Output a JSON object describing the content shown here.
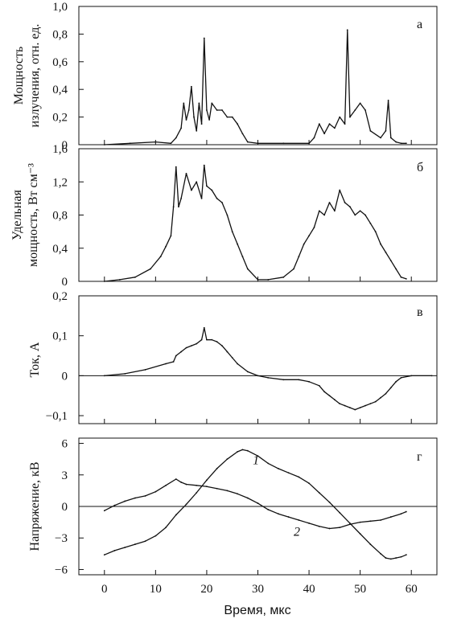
{
  "chart_data": [
    {
      "panel": "а",
      "type": "line",
      "ylabel": [
        "Мощность",
        "излучения, отн. ед."
      ],
      "ylim": [
        0,
        1.0
      ],
      "yticks": [
        0,
        0.2,
        0.4,
        0.6,
        0.8,
        1.0
      ],
      "ytick_labels": [
        "0",
        "0,2",
        "0,4",
        "0,6",
        "0,8",
        "1,0"
      ],
      "xlim": [
        -5,
        65
      ],
      "series": [
        {
          "x": [
            0,
            5,
            10,
            13,
            14,
            15,
            15.5,
            16,
            16.5,
            17,
            17.5,
            18,
            18.5,
            19,
            19.5,
            20,
            20.5,
            21,
            22,
            23,
            24,
            25,
            26,
            27,
            28,
            30,
            35,
            40,
            41,
            42,
            43,
            44,
            45,
            46,
            47,
            47.5,
            48,
            49,
            50,
            51,
            52,
            54,
            55,
            55.5,
            56,
            57,
            58,
            59
          ],
          "y": [
            0,
            0.01,
            0.02,
            0.01,
            0.05,
            0.12,
            0.3,
            0.18,
            0.25,
            0.42,
            0.2,
            0.1,
            0.3,
            0.15,
            0.77,
            0.25,
            0.18,
            0.3,
            0.25,
            0.25,
            0.2,
            0.2,
            0.15,
            0.08,
            0.02,
            0.01,
            0.01,
            0.01,
            0.05,
            0.15,
            0.08,
            0.15,
            0.12,
            0.2,
            0.15,
            0.83,
            0.2,
            0.25,
            0.3,
            0.25,
            0.1,
            0.05,
            0.1,
            0.32,
            0.05,
            0.02,
            0.01,
            0.01
          ]
        }
      ]
    },
    {
      "panel": "б",
      "type": "line",
      "ylabel": [
        "Удельная",
        "мощность, Вт см⁻³"
      ],
      "ylim": [
        0,
        1.6
      ],
      "yticks": [
        0,
        0.4,
        0.8,
        1.2,
        1.6
      ],
      "ytick_labels": [
        "0",
        "0,4",
        "0,8",
        "1,2",
        "1,6"
      ],
      "xlim": [
        -5,
        65
      ],
      "series": [
        {
          "x": [
            0,
            3,
            6,
            9,
            11,
            12,
            13,
            13.5,
            14,
            14.5,
            15,
            16,
            17,
            18,
            19,
            19.5,
            20,
            21,
            22,
            23,
            24,
            25,
            26,
            27,
            28,
            30,
            32,
            35,
            37,
            38,
            39,
            40,
            41,
            42,
            43,
            44,
            45,
            46,
            47,
            48,
            49,
            50,
            51,
            52,
            53,
            54,
            55,
            56,
            57,
            58,
            59
          ],
          "y": [
            0,
            0.02,
            0.05,
            0.15,
            0.3,
            0.42,
            0.55,
            0.9,
            1.38,
            0.9,
            1.0,
            1.3,
            1.1,
            1.2,
            1.0,
            1.4,
            1.15,
            1.1,
            1.0,
            0.95,
            0.8,
            0.6,
            0.45,
            0.3,
            0.15,
            0.02,
            0.02,
            0.05,
            0.15,
            0.3,
            0.45,
            0.55,
            0.65,
            0.85,
            0.8,
            0.95,
            0.85,
            1.1,
            0.95,
            0.9,
            0.8,
            0.85,
            0.8,
            0.7,
            0.6,
            0.45,
            0.35,
            0.25,
            0.15,
            0.05,
            0.03
          ]
        }
      ]
    },
    {
      "panel": "в",
      "type": "line",
      "ylabel": [
        "Ток, А"
      ],
      "ylim": [
        -0.12,
        0.2
      ],
      "yticks": [
        -0.1,
        0,
        0.1,
        0.2
      ],
      "ytick_labels": [
        "−0,1",
        "0",
        "0,1",
        "0,2"
      ],
      "xlim": [
        -5,
        65
      ],
      "series": [
        {
          "x": [
            0,
            4,
            8,
            12,
            13.5,
            14,
            15,
            16,
            17,
            18,
            19,
            19.5,
            20,
            21,
            22,
            23,
            24,
            25,
            26,
            28,
            30,
            32,
            35,
            38,
            40,
            42,
            43,
            44,
            45,
            46,
            47,
            48,
            49,
            50,
            51,
            52,
            53,
            54,
            55,
            56,
            57,
            58,
            60,
            64
          ],
          "y": [
            0,
            0.005,
            0.015,
            0.03,
            0.035,
            0.05,
            0.06,
            0.07,
            0.075,
            0.08,
            0.09,
            0.12,
            0.09,
            0.09,
            0.085,
            0.075,
            0.06,
            0.045,
            0.03,
            0.01,
            0.0,
            -0.005,
            -0.01,
            -0.01,
            -0.015,
            -0.025,
            -0.04,
            -0.05,
            -0.06,
            -0.07,
            -0.075,
            -0.08,
            -0.085,
            -0.08,
            -0.075,
            -0.07,
            -0.065,
            -0.055,
            -0.045,
            -0.03,
            -0.015,
            -0.005,
            0,
            0
          ]
        }
      ]
    },
    {
      "panel": "г",
      "type": "line",
      "ylabel": [
        "Напряжение, кВ"
      ],
      "ylim": [
        -6.5,
        6.5
      ],
      "yticks": [
        -6,
        -3,
        0,
        3,
        6
      ],
      "ytick_labels": [
        "−6",
        "−3",
        "0",
        "3",
        "6"
      ],
      "xlim": [
        -5,
        65
      ],
      "xticks": [
        0,
        10,
        20,
        30,
        40,
        50,
        60
      ],
      "xtick_labels": [
        "0",
        "10",
        "20",
        "30",
        "40",
        "50",
        "60"
      ],
      "xlabel": "Время, мкс",
      "series": [
        {
          "name": "1",
          "x": [
            0,
            2,
            4,
            6,
            8,
            10,
            12,
            14,
            16,
            18,
            20,
            22,
            24,
            26,
            27,
            28,
            30,
            32,
            34,
            36,
            38,
            40,
            42,
            44,
            46,
            48,
            50,
            52,
            54,
            55,
            56,
            57,
            58,
            59
          ],
          "y": [
            -4.6,
            -4.2,
            -3.9,
            -3.6,
            -3.3,
            -2.8,
            -2.0,
            -0.8,
            0.2,
            1.3,
            2.5,
            3.6,
            4.5,
            5.2,
            5.4,
            5.3,
            4.8,
            4.1,
            3.6,
            3.2,
            2.8,
            2.2,
            1.3,
            0.4,
            -0.6,
            -1.6,
            -2.6,
            -3.6,
            -4.5,
            -4.9,
            -5.0,
            -4.9,
            -4.8,
            -4.6
          ]
        },
        {
          "name": "2",
          "x": [
            0,
            2,
            4,
            6,
            8,
            10,
            12,
            14,
            15,
            16,
            18,
            20,
            22,
            24,
            26,
            28,
            30,
            32,
            34,
            36,
            38,
            40,
            42,
            44,
            46,
            48,
            50,
            52,
            54,
            56,
            58,
            59
          ],
          "y": [
            -0.4,
            0.1,
            0.5,
            0.8,
            1.0,
            1.4,
            2.0,
            2.6,
            2.3,
            2.1,
            2.0,
            1.9,
            1.7,
            1.5,
            1.2,
            0.8,
            0.3,
            -0.3,
            -0.7,
            -1.0,
            -1.3,
            -1.6,
            -1.9,
            -2.1,
            -2.0,
            -1.7,
            -1.5,
            -1.4,
            -1.3,
            -1.0,
            -0.7,
            -0.5
          ]
        }
      ]
    }
  ]
}
